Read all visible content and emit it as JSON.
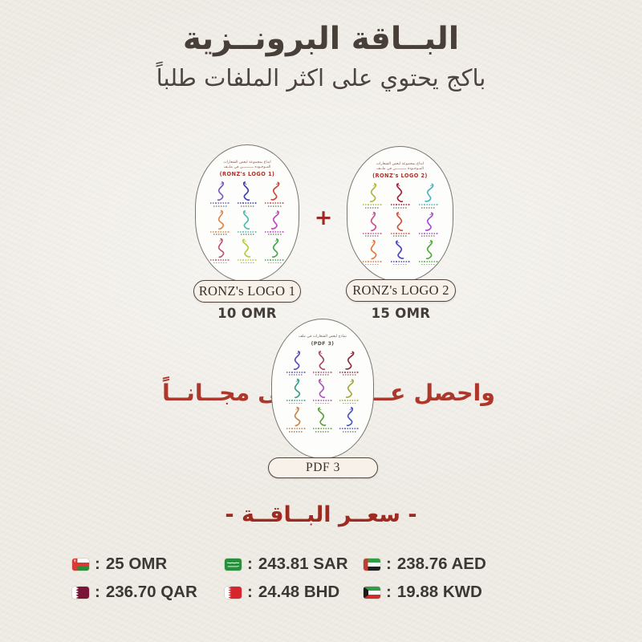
{
  "page": {
    "title": "البــاقة البرونــزية",
    "subtitle": "باكج يحتوي على اكثر الملفات طلباً"
  },
  "colors": {
    "accent_red": "#9e2b22",
    "title_dark": "#473f38",
    "paper": "#f0ede7"
  },
  "plus_sign": "+",
  "packages": [
    {
      "id": "logo-pack-1",
      "header_line1": "ابداع بمجموعة لبعض الشعارات",
      "header_line2": "المـوجـودة ــــــــــن في ملــف",
      "name": "(RONZ's LOGO 1)",
      "pill_label": "RONZ's LOGO 1",
      "price_label": "10 OMR",
      "logo_colors": [
        "#7a5cb8",
        "#3f3fae",
        "#c44a3e",
        "#e08748",
        "#4cbcae",
        "#c045c0",
        "#b85878",
        "#b8cc3a",
        "#46a84e"
      ]
    },
    {
      "id": "logo-pack-2",
      "header_line1": "ابداع بمجموعة لبعض الشعارات",
      "header_line2": "المـوجـودة ــــــــــن في ملــف",
      "name": "(RONZ's LOGO 2)",
      "pill_label": "RONZ's LOGO 2",
      "price_label": "15 OMR",
      "logo_colors": [
        "#aeb93c",
        "#a32236",
        "#4fb3c0",
        "#c9508f",
        "#d05340",
        "#a44fd0",
        "#e2793f",
        "#4746c8",
        "#52ab40"
      ]
    },
    {
      "id": "pdf-pack-3",
      "header_line1": "نماذج لبعض الشعارات في ملف",
      "header_line2": "",
      "name": "(PDF 3)",
      "pill_label": "PDF 3",
      "price_label": "",
      "logo_colors": [
        "#5b50ae",
        "#a84a6a",
        "#8e2b3d",
        "#3d9b8a",
        "#a957b8",
        "#a3a843",
        "#c8854a",
        "#5da03c",
        "#4b57c4"
      ]
    }
  ],
  "free_offer": {
    "full_text": "واحصل عــلى مجــانــاً",
    "right_segment": "واحصل عــــ",
    "left_segment": "ــلى مجــانــاً"
  },
  "price_section": {
    "heading": "- سعــر البــاقــة -",
    "separator": ":",
    "items": [
      {
        "flag": "oman-flag-icon",
        "amount": "25 OMR"
      },
      {
        "flag": "saudi-flag-icon",
        "amount": "243.81 SAR"
      },
      {
        "flag": "uae-flag-icon",
        "amount": "238.76 AED"
      },
      {
        "flag": "qatar-flag-icon",
        "amount": "236.70 QAR"
      },
      {
        "flag": "bahrain-flag-icon",
        "amount": "24.48 BHD"
      },
      {
        "flag": "kuwait-flag-icon",
        "amount": "19.88 KWD"
      }
    ]
  }
}
